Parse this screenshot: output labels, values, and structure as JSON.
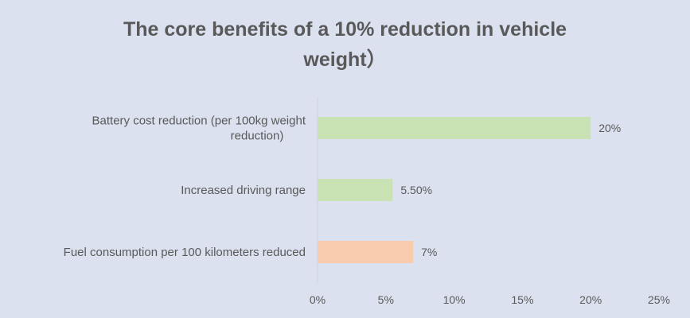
{
  "chart_data": {
    "type": "bar",
    "orientation": "horizontal",
    "title_lines": [
      "The core benefits of a 10% reduction in vehicle",
      "weight）"
    ],
    "categories": [
      "Battery cost reduction (per 100kg weight reduction)",
      "Increased driving range",
      "Fuel consumption per 100 kilometers reduced"
    ],
    "category_label_lines": [
      [
        "Battery cost reduction (per 100kg weight",
        "reduction)"
      ],
      [
        "Increased driving range"
      ],
      [
        "Fuel consumption per 100 kilometers reduced"
      ]
    ],
    "values": [
      20,
      5.5,
      7
    ],
    "data_labels": [
      "20%",
      "5.50%",
      "7%"
    ],
    "bar_colors": [
      "#c9e2b3",
      "#c9e2b3",
      "#f8cbad"
    ],
    "xlim": [
      0,
      25
    ],
    "x_ticks": [
      0,
      5,
      10,
      15,
      20,
      25
    ],
    "x_tick_labels": [
      "0%",
      "5%",
      "10%",
      "15%",
      "20%",
      "25%"
    ],
    "grid": false,
    "legend": "none"
  }
}
